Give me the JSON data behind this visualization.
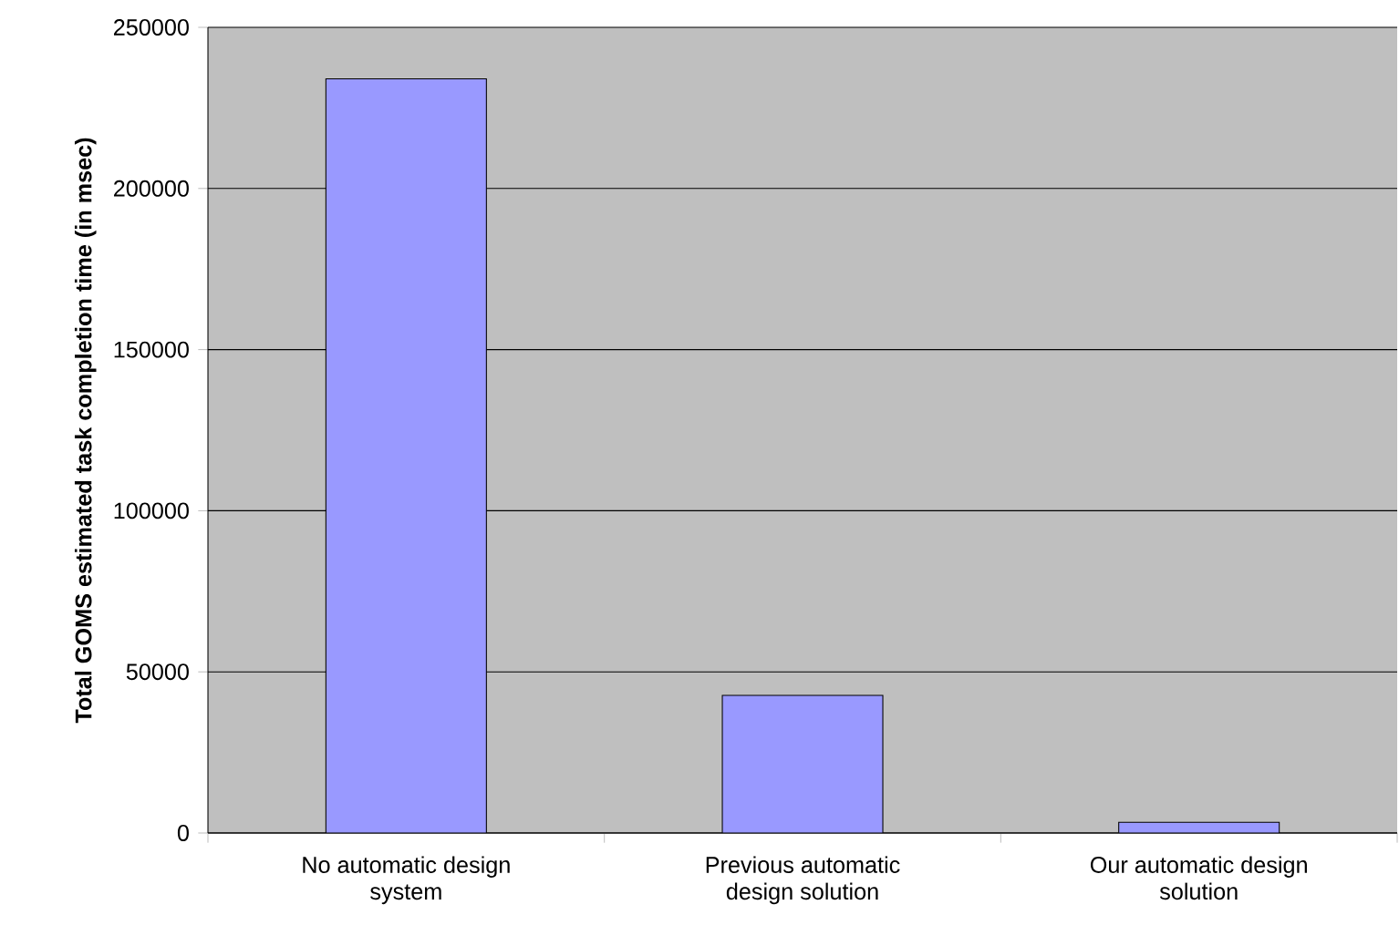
{
  "chart_data": {
    "type": "bar",
    "ylabel": "Total GOMS estimated task completion time (in msec)",
    "categories": [
      "No automatic design system",
      "Previous automatic design solution",
      "Our automatic design solution"
    ],
    "values": [
      234000,
      42700,
      3300
    ],
    "color": "#9999ff",
    "ylim": [
      0,
      250000
    ],
    "yticks": [
      0,
      50000,
      100000,
      150000,
      200000,
      250000
    ],
    "grid": "y"
  }
}
